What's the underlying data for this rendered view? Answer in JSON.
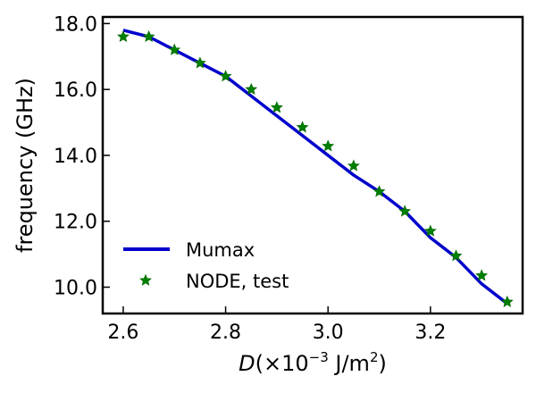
{
  "chart_data": {
    "type": "line",
    "xlabel": {
      "symbol": "D",
      "prefix": "(×10",
      "exponent": "−3",
      "unit": " J/m",
      "unit_exponent": "2",
      "suffix": ")"
    },
    "ylabel": "frequency (GHz)",
    "xlim": [
      2.56,
      3.38
    ],
    "ylim": [
      9.2,
      18.2
    ],
    "xticks": [
      2.6,
      2.8,
      3.0,
      3.2
    ],
    "xtick_labels": [
      "2.6",
      "2.8",
      "3.0",
      "3.2"
    ],
    "yticks": [
      10,
      12,
      14,
      16,
      18
    ],
    "ytick_labels": [
      "10.0",
      "12.0",
      "14.0",
      "16.0",
      "18.0"
    ],
    "grid": false,
    "legend_position": "lower-left",
    "series": [
      {
        "name": "Mumax",
        "kind": "line",
        "color": "#0000cc",
        "x": [
          2.6,
          2.65,
          2.7,
          2.75,
          2.8,
          2.85,
          2.9,
          2.95,
          3.0,
          3.05,
          3.1,
          3.15,
          3.2,
          3.25,
          3.3,
          3.35
        ],
        "y": [
          17.8,
          17.6,
          17.2,
          16.8,
          16.4,
          15.8,
          15.2,
          14.6,
          14.0,
          13.4,
          12.9,
          12.3,
          11.5,
          10.9,
          10.1,
          9.5
        ]
      },
      {
        "name": "NODE, test",
        "kind": "scatter",
        "marker": "star",
        "color": "#008000",
        "x": [
          2.6,
          2.65,
          2.7,
          2.75,
          2.8,
          2.85,
          2.9,
          2.95,
          3.0,
          3.05,
          3.1,
          3.15,
          3.2,
          3.25,
          3.3,
          3.35
        ],
        "y": [
          17.6,
          17.6,
          17.2,
          16.8,
          16.4,
          16.0,
          15.45,
          14.85,
          14.28,
          13.68,
          12.9,
          12.3,
          11.7,
          10.95,
          10.35,
          9.55
        ]
      }
    ]
  }
}
